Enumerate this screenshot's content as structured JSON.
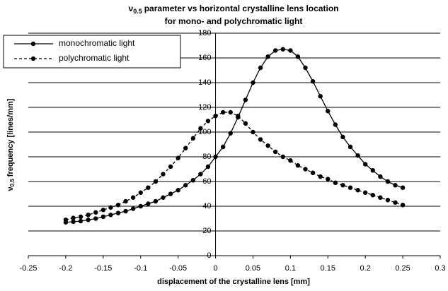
{
  "chart_data": {
    "type": "line",
    "title": {
      "symbol": "ν",
      "subscript": "0.5",
      "text": "parameter vs horizontal crystalline lens location"
    },
    "subtitle": "for mono- and polychromatic light",
    "xlabel": "displacement of the crystalline lens [mm]",
    "ylabel": {
      "symbol": "ν",
      "subscript": "0.5",
      "text": "frequency [lines/mm]"
    },
    "x": [
      -0.2,
      -0.19,
      -0.18,
      -0.17,
      -0.16,
      -0.15,
      -0.14,
      -0.13,
      -0.12,
      -0.11,
      -0.1,
      -0.09,
      -0.08,
      -0.07,
      -0.06,
      -0.05,
      -0.04,
      -0.03,
      -0.02,
      -0.01,
      0,
      0.01,
      0.02,
      0.03,
      0.04,
      0.05,
      0.06,
      0.07,
      0.08,
      0.09,
      0.1,
      0.11,
      0.12,
      0.13,
      0.14,
      0.15,
      0.16,
      0.17,
      0.18,
      0.19,
      0.2,
      0.21,
      0.22,
      0.23,
      0.24,
      0.25
    ],
    "series": [
      {
        "name": "monochromatic light",
        "color": "#000000",
        "linestyle": "solid",
        "values": [
          27,
          27.5,
          28,
          29,
          30,
          31.5,
          33,
          34.5,
          36,
          38,
          40,
          42,
          44,
          47,
          50,
          53,
          57,
          61,
          66,
          72,
          80,
          88,
          99,
          112,
          126,
          140,
          152,
          161,
          166,
          167,
          166,
          161,
          152,
          141,
          129,
          117,
          106,
          96,
          88,
          81,
          74,
          69,
          64,
          60,
          57,
          55
        ]
      },
      {
        "name": "polychromatic light",
        "color": "#000000",
        "linestyle": "dashed",
        "values": [
          29,
          30.5,
          31.5,
          33,
          35,
          37,
          39,
          41,
          44,
          47,
          51,
          55,
          60,
          66,
          72,
          79,
          87,
          95,
          103,
          109,
          113,
          116,
          116,
          113,
          107,
          100,
          94,
          89,
          84,
          80,
          77,
          73,
          70,
          67,
          64,
          62,
          59,
          57,
          55,
          53,
          51,
          49,
          47,
          45,
          43,
          41
        ]
      }
    ],
    "xlim": [
      -0.25,
      0.3
    ],
    "xticks": [
      -0.25,
      -0.2,
      -0.15,
      -0.1,
      -0.05,
      0,
      0.05,
      0.1,
      0.15,
      0.2,
      0.25,
      0.3
    ],
    "ylim": [
      0,
      180
    ],
    "yticks": [
      0,
      20,
      40,
      60,
      80,
      100,
      120,
      140,
      160,
      180
    ],
    "grid": true,
    "legend": "upper left"
  }
}
